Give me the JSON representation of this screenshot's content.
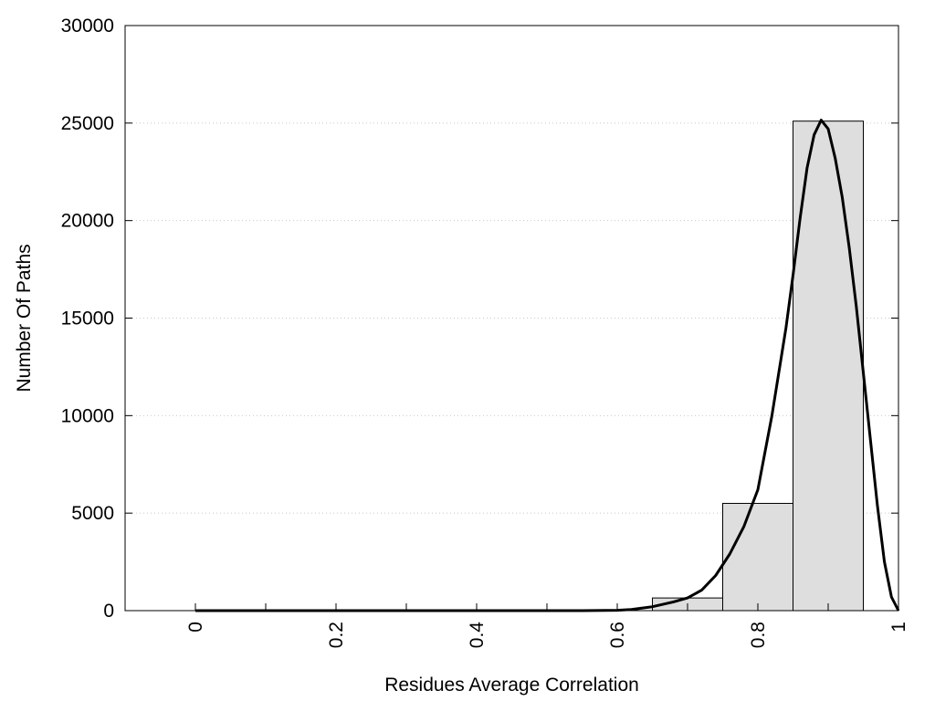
{
  "chart_data": {
    "type": "bar",
    "title": "",
    "xlabel": "Residues Average Correlation",
    "ylabel": "Number Of Paths",
    "xlim": [
      -0.1,
      1
    ],
    "ylim": [
      0,
      30000
    ],
    "x_ticks": [
      0,
      0.2,
      0.4,
      0.6,
      0.8,
      1
    ],
    "x_tick_labels": [
      "0",
      "0.2",
      "0.4",
      "0.6",
      "0.8",
      "1"
    ],
    "x_minor_ticks": [
      0.1,
      0.3,
      0.5,
      0.7,
      0.9
    ],
    "y_ticks": [
      0,
      5000,
      10000,
      15000,
      20000,
      25000,
      30000
    ],
    "y_tick_labels": [
      "0",
      "5000",
      "10000",
      "15000",
      "20000",
      "25000",
      "30000"
    ],
    "grid": "horizontal-dotted",
    "legend": "none",
    "bin_width": 0.1,
    "bins": [
      {
        "center": 0.0,
        "value": 0
      },
      {
        "center": 0.1,
        "value": 0
      },
      {
        "center": 0.2,
        "value": 0
      },
      {
        "center": 0.3,
        "value": 0
      },
      {
        "center": 0.4,
        "value": 0
      },
      {
        "center": 0.5,
        "value": 0
      },
      {
        "center": 0.6,
        "value": 0
      },
      {
        "center": 0.7,
        "value": 650
      },
      {
        "center": 0.8,
        "value": 5500
      },
      {
        "center": 0.9,
        "value": 25100
      }
    ],
    "fit_curve": {
      "x": [
        0,
        0.1,
        0.2,
        0.3,
        0.4,
        0.5,
        0.55,
        0.6,
        0.62,
        0.65,
        0.68,
        0.7,
        0.72,
        0.74,
        0.76,
        0.78,
        0.8,
        0.82,
        0.84,
        0.85,
        0.86,
        0.87,
        0.88,
        0.89,
        0.9,
        0.91,
        0.92,
        0.93,
        0.94,
        0.95,
        0.96,
        0.97,
        0.98,
        0.99,
        1.0
      ],
      "y": [
        0,
        0,
        0,
        0,
        0,
        0,
        0,
        20,
        60,
        200,
        450,
        650,
        1050,
        1800,
        2900,
        4300,
        6200,
        10000,
        14500,
        17200,
        20100,
        22700,
        24400,
        25150,
        24700,
        23200,
        21200,
        18600,
        15600,
        12200,
        8800,
        5400,
        2500,
        700,
        0
      ]
    },
    "colors": {
      "bar_fill": "#dedede",
      "bar_stroke": "#000000",
      "curve": "#000000",
      "grid": "#c8c8c8"
    }
  }
}
